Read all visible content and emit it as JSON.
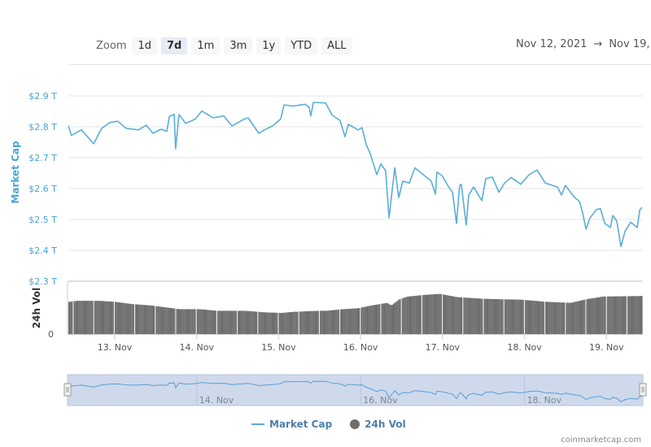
{
  "toolbar": {
    "zoom_label": "Zoom",
    "buttons": [
      "1d",
      "7d",
      "1m",
      "3m",
      "1y",
      "YTD",
      "ALL"
    ],
    "active": "7d",
    "range_from": "Nov 12, 2021",
    "range_arrow": "→",
    "range_to": "Nov 19, 2"
  },
  "legend": {
    "market_cap": "Market Cap",
    "volume": "24h Vol"
  },
  "credit": "coinmarketcap.com",
  "colors": {
    "market_cap": "#5aaed9",
    "volume": "#6e6e6e",
    "navigator_fill": "#cfd9ec",
    "axis_label": "#4aa3d8"
  },
  "chart_data": {
    "type": "line",
    "title": "",
    "x_axis": {
      "type": "datetime",
      "range": [
        "2021-11-12T10:25",
        "2021-11-19T10:25"
      ],
      "ticks": [
        "2021-11-13",
        "2021-11-14",
        "2021-11-15",
        "2021-11-16",
        "2021-11-17",
        "2021-11-18",
        "2021-11-19"
      ],
      "tick_labels": [
        "13. Nov",
        "14. Nov",
        "15. Nov",
        "16. Nov",
        "17. Nov",
        "18. Nov",
        "19. Nov"
      ]
    },
    "y_axis": {
      "label": "Market Cap",
      "range": [
        2.3,
        2.9
      ],
      "unit": "T",
      "ticks": [
        2.9,
        2.8,
        2.7,
        2.6,
        2.5,
        2.4,
        2.3
      ],
      "tick_labels": [
        "$2.9 T",
        "$2.8 T",
        "$2.7 T",
        "$2.6 T",
        "$2.5 T",
        "$2.4 T",
        "$2.3 T"
      ]
    },
    "y2_axis": {
      "label": "24h Vol",
      "tick_labels": [
        "0"
      ],
      "range": [
        0,
        1
      ]
    },
    "grid": true,
    "legend_placement": "bottom",
    "series": [
      {
        "name": "Market Cap",
        "type": "line",
        "points": [
          [
            "2021-11-12T10:25",
            2.803
          ],
          [
            "2021-11-12T11:20",
            2.772
          ],
          [
            "2021-11-12T14:15",
            2.79
          ],
          [
            "2021-11-12T17:50",
            2.745
          ],
          [
            "2021-11-12T20:10",
            2.795
          ],
          [
            "2021-11-12T22:35",
            2.814
          ],
          [
            "2021-11-13T00:55",
            2.818
          ],
          [
            "2021-11-13T03:20",
            2.795
          ],
          [
            "2021-11-13T06:55",
            2.79
          ],
          [
            "2021-11-13T09:15",
            2.805
          ],
          [
            "2021-11-13T11:10",
            2.779
          ],
          [
            "2021-11-13T13:35",
            2.792
          ],
          [
            "2021-11-13T15:15",
            2.785
          ],
          [
            "2021-11-13T16:00",
            2.834
          ],
          [
            "2021-11-13T17:25",
            2.84
          ],
          [
            "2021-11-13T17:50",
            2.729
          ],
          [
            "2021-11-13T18:50",
            2.84
          ],
          [
            "2021-11-13T20:45",
            2.811
          ],
          [
            "2021-11-13T23:35",
            2.825
          ],
          [
            "2021-11-14T01:30",
            2.851
          ],
          [
            "2021-11-14T04:50",
            2.829
          ],
          [
            "2021-11-14T07:55",
            2.835
          ],
          [
            "2021-11-14T10:20",
            2.803
          ],
          [
            "2021-11-14T13:55",
            2.825
          ],
          [
            "2021-11-14T15:05",
            2.829
          ],
          [
            "2021-11-14T18:10",
            2.779
          ],
          [
            "2021-11-14T19:50",
            2.79
          ],
          [
            "2021-11-14T22:15",
            2.803
          ],
          [
            "2021-11-15T00:35",
            2.825
          ],
          [
            "2021-11-15T01:35",
            2.871
          ],
          [
            "2021-11-15T04:10",
            2.867
          ],
          [
            "2021-11-15T07:45",
            2.873
          ],
          [
            "2021-11-15T08:55",
            2.864
          ],
          [
            "2021-11-15T09:25",
            2.835
          ],
          [
            "2021-11-15T10:10",
            2.879
          ],
          [
            "2021-11-15T13:45",
            2.877
          ],
          [
            "2021-11-15T15:40",
            2.838
          ],
          [
            "2021-11-15T18:00",
            2.82
          ],
          [
            "2021-11-15T19:25",
            2.768
          ],
          [
            "2021-11-15T20:25",
            2.808
          ],
          [
            "2021-11-15T23:15",
            2.79
          ],
          [
            "2021-11-16T00:25",
            2.797
          ],
          [
            "2021-11-16T01:40",
            2.742
          ],
          [
            "2021-11-16T02:50",
            2.713
          ],
          [
            "2021-11-16T03:30",
            2.689
          ],
          [
            "2021-11-16T04:45",
            2.645
          ],
          [
            "2021-11-16T05:55",
            2.68
          ],
          [
            "2021-11-16T07:20",
            2.658
          ],
          [
            "2021-11-16T08:20",
            2.505
          ],
          [
            "2021-11-16T10:00",
            2.667
          ],
          [
            "2021-11-16T11:10",
            2.571
          ],
          [
            "2021-11-16T12:20",
            2.624
          ],
          [
            "2021-11-16T14:15",
            2.618
          ],
          [
            "2021-11-16T15:55",
            2.667
          ],
          [
            "2021-11-16T18:20",
            2.645
          ],
          [
            "2021-11-16T20:40",
            2.624
          ],
          [
            "2021-11-16T21:55",
            2.582
          ],
          [
            "2021-11-16T22:20",
            2.653
          ],
          [
            "2021-11-16T23:50",
            2.642
          ],
          [
            "2021-11-17T01:30",
            2.61
          ],
          [
            "2021-11-17T02:55",
            2.588
          ],
          [
            "2021-11-17T04:05",
            2.487
          ],
          [
            "2021-11-17T05:00",
            2.61
          ],
          [
            "2021-11-17T05:30",
            2.614
          ],
          [
            "2021-11-17T06:55",
            2.482
          ],
          [
            "2021-11-17T07:40",
            2.579
          ],
          [
            "2021-11-17T09:05",
            2.605
          ],
          [
            "2021-11-17T11:30",
            2.561
          ],
          [
            "2021-11-17T12:40",
            2.632
          ],
          [
            "2021-11-17T14:35",
            2.637
          ],
          [
            "2021-11-17T16:30",
            2.588
          ],
          [
            "2021-11-17T18:10",
            2.618
          ],
          [
            "2021-11-17T20:05",
            2.636
          ],
          [
            "2021-11-17T22:55",
            2.614
          ],
          [
            "2021-11-18T01:20",
            2.645
          ],
          [
            "2021-11-18T03:40",
            2.66
          ],
          [
            "2021-11-18T06:05",
            2.618
          ],
          [
            "2021-11-18T09:40",
            2.605
          ],
          [
            "2021-11-18T10:50",
            2.579
          ],
          [
            "2021-11-18T12:00",
            2.61
          ],
          [
            "2021-11-18T14:25",
            2.574
          ],
          [
            "2021-11-18T16:05",
            2.558
          ],
          [
            "2021-11-18T17:00",
            2.522
          ],
          [
            "2021-11-18T18:00",
            2.469
          ],
          [
            "2021-11-18T19:10",
            2.505
          ],
          [
            "2021-11-18T21:05",
            2.532
          ],
          [
            "2021-11-18T22:15",
            2.535
          ],
          [
            "2021-11-18T23:30",
            2.487
          ],
          [
            "2021-11-19T01:10",
            2.474
          ],
          [
            "2021-11-19T01:50",
            2.513
          ],
          [
            "2021-11-19T03:00",
            2.495
          ],
          [
            "2021-11-19T04:15",
            2.412
          ],
          [
            "2021-11-19T05:25",
            2.461
          ],
          [
            "2021-11-19T07:05",
            2.491
          ],
          [
            "2021-11-19T09:00",
            2.474
          ],
          [
            "2021-11-19T09:45",
            2.531
          ],
          [
            "2021-11-19T10:25",
            2.539
          ]
        ]
      },
      {
        "name": "24h Vol",
        "type": "column",
        "value_unit": "fraction of volume axis max",
        "points": [
          [
            "2021-11-12T10:25",
            0.61
          ],
          [
            "2021-11-12T13:00",
            0.63
          ],
          [
            "2021-11-12T19:00",
            0.63
          ],
          [
            "2021-11-12T23:45",
            0.61
          ],
          [
            "2021-11-13T04:30",
            0.57
          ],
          [
            "2021-11-13T10:30",
            0.54
          ],
          [
            "2021-11-13T14:05",
            0.51
          ],
          [
            "2021-11-13T18:50",
            0.47
          ],
          [
            "2021-11-14T00:45",
            0.47
          ],
          [
            "2021-11-14T05:35",
            0.44
          ],
          [
            "2021-11-14T13:55",
            0.44
          ],
          [
            "2021-11-14T19:50",
            0.41
          ],
          [
            "2021-11-15T00:35",
            0.4
          ],
          [
            "2021-11-15T04:10",
            0.42
          ],
          [
            "2021-11-15T11:20",
            0.44
          ],
          [
            "2021-11-15T13:45",
            0.44
          ],
          [
            "2021-11-15T18:30",
            0.47
          ],
          [
            "2021-11-15T23:15",
            0.49
          ],
          [
            "2021-11-16T02:50",
            0.54
          ],
          [
            "2021-11-16T07:35",
            0.59
          ],
          [
            "2021-11-16T08:45",
            0.54
          ],
          [
            "2021-11-16T11:10",
            0.66
          ],
          [
            "2021-11-16T13:35",
            0.71
          ],
          [
            "2021-11-16T18:20",
            0.74
          ],
          [
            "2021-11-16T23:05",
            0.76
          ],
          [
            "2021-11-17T03:50",
            0.7
          ],
          [
            "2021-11-17T11:00",
            0.67
          ],
          [
            "2021-11-17T15:45",
            0.66
          ],
          [
            "2021-11-17T22:55",
            0.65
          ],
          [
            "2021-11-18T06:05",
            0.61
          ],
          [
            "2021-11-18T13:15",
            0.59
          ],
          [
            "2021-11-18T18:00",
            0.66
          ],
          [
            "2021-11-18T22:45",
            0.71
          ],
          [
            "2021-11-19T10:25",
            0.72
          ]
        ]
      }
    ],
    "navigator": {
      "tick_labels": [
        "14. Nov",
        "16. Nov",
        "18. Nov"
      ],
      "ticks": [
        "2021-11-14",
        "2021-11-16",
        "2021-11-18"
      ]
    }
  }
}
